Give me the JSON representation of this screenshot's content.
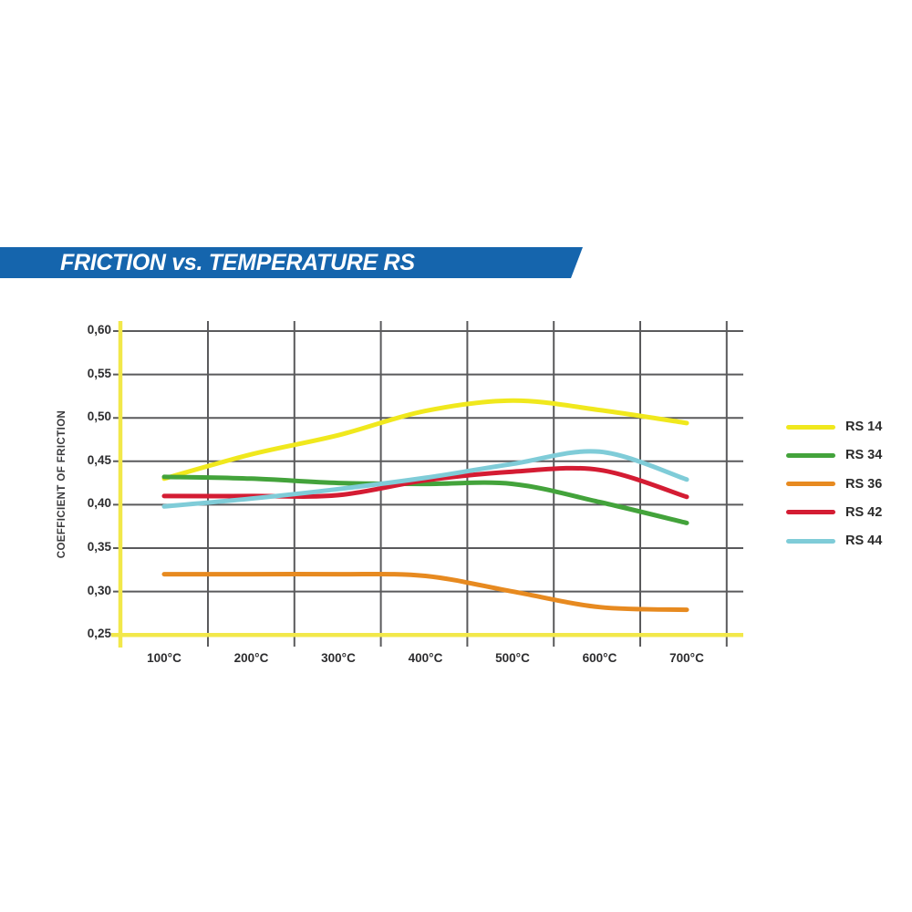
{
  "banner": {
    "title": "FRICTION vs. TEMPERATURE RS",
    "background_color": "#1565ad",
    "text_color": "#ffffff"
  },
  "chart_data": {
    "type": "line",
    "title": "FRICTION vs. TEMPERATURE RS",
    "ylabel": "COEFFICIENT OF FRICTION",
    "xlabel": "",
    "x_tick_labels": [
      "100°C",
      "200°C",
      "300°C",
      "400°C",
      "500°C",
      "600°C",
      "700°C"
    ],
    "x_categories_celsius": [
      100,
      200,
      300,
      400,
      500,
      600,
      700
    ],
    "y_tick_labels": [
      "0,60",
      "0,55",
      "0,50",
      "0,45",
      "0,40",
      "0,35",
      "0,30",
      "0,25"
    ],
    "y_ticks": [
      0.6,
      0.55,
      0.5,
      0.45,
      0.4,
      0.35,
      0.3,
      0.25
    ],
    "ylim": [
      0.25,
      0.6
    ],
    "grid": true,
    "legend_position": "right",
    "grid_color": "#5a5a5c",
    "axis_color": "#f2e84a",
    "series": [
      {
        "name": "RS 14",
        "color": "#f0e81d",
        "values": [
          0.43,
          0.458,
          0.48,
          0.508,
          0.52,
          0.509,
          0.494
        ]
      },
      {
        "name": "RS 34",
        "color": "#43a33b",
        "values": [
          0.432,
          0.43,
          0.425,
          0.424,
          0.424,
          0.403,
          0.379
        ]
      },
      {
        "name": "RS 36",
        "color": "#e78a20",
        "values": [
          0.32,
          0.32,
          0.32,
          0.318,
          0.3,
          0.282,
          0.279
        ]
      },
      {
        "name": "RS 42",
        "color": "#d41c33",
        "values": [
          0.41,
          0.41,
          0.411,
          0.428,
          0.438,
          0.44,
          0.409
        ]
      },
      {
        "name": "RS 44",
        "color": "#7fccd8",
        "values": [
          0.398,
          0.407,
          0.418,
          0.431,
          0.447,
          0.461,
          0.429
        ]
      }
    ]
  }
}
